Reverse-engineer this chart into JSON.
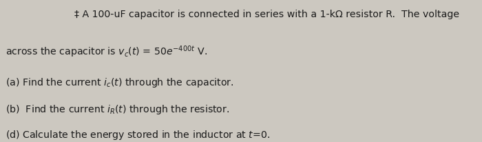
{
  "background_color": "#ccc8c0",
  "figsize": [
    7.0,
    2.06
  ],
  "dpi": 100,
  "text_color": "#1c1c1c",
  "fontsize": 10.2
}
